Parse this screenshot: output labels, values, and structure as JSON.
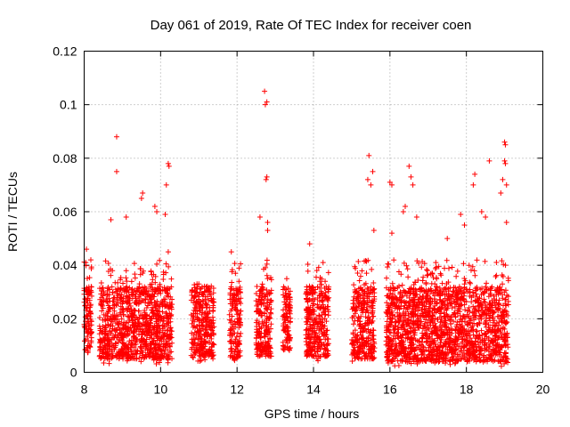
{
  "chart_data": {
    "type": "scatter",
    "title": "Day 061 of 2019, Rate Of TEC Index for receiver coen",
    "xlabel": "GPS time / hours",
    "ylabel": "ROTI / TECUs",
    "xlim": [
      8,
      20
    ],
    "ylim": [
      0,
      0.12
    ],
    "x_ticks": [
      8,
      10,
      12,
      14,
      16,
      18,
      20
    ],
    "x_tick_labels": [
      "8",
      "10",
      "12",
      "14",
      "16",
      "18",
      "20"
    ],
    "y_ticks": [
      0,
      0.02,
      0.04,
      0.06,
      0.08,
      0.1,
      0.12
    ],
    "y_tick_labels": [
      "0",
      "0.02",
      "0.04",
      "0.06",
      "0.08",
      "0.1",
      "0.12"
    ],
    "grid": true,
    "marker": "+",
    "marker_color": "#ff0000",
    "series": [
      {
        "name": "ROTI",
        "cluster_summary": [
          {
            "x_range": [
              8.0,
              8.2
            ],
            "y_range": [
              0.005,
              0.046
            ]
          },
          {
            "x_range": [
              8.4,
              10.3
            ],
            "y_range": [
              0.003,
              0.088
            ]
          },
          {
            "x_range": [
              10.8,
              11.4
            ],
            "y_range": [
              0.004,
              0.033
            ]
          },
          {
            "x_range": [
              11.8,
              12.1
            ],
            "y_range": [
              0.003,
              0.045
            ]
          },
          {
            "x_range": [
              12.5,
              12.9
            ],
            "y_range": [
              0.004,
              0.105
            ]
          },
          {
            "x_range": [
              13.2,
              13.4
            ],
            "y_range": [
              0.006,
              0.035
            ]
          },
          {
            "x_range": [
              13.8,
              14.4
            ],
            "y_range": [
              0.004,
              0.048
            ]
          },
          {
            "x_range": [
              15.0,
              15.6
            ],
            "y_range": [
              0.003,
              0.081
            ]
          },
          {
            "x_range": [
              15.9,
              19.1
            ],
            "y_range": [
              0.002,
              0.086
            ]
          }
        ],
        "points": [
          [
            8.06,
            0.046
          ],
          [
            8.05,
            0.031
          ],
          [
            8.1,
            0.008
          ],
          [
            8.1,
            0.015
          ],
          [
            8.12,
            0.022
          ],
          [
            8.85,
            0.088
          ],
          [
            8.85,
            0.075
          ],
          [
            9.53,
            0.067
          ],
          [
            9.5,
            0.065
          ],
          [
            8.7,
            0.057
          ],
          [
            9.1,
            0.058
          ],
          [
            9.85,
            0.062
          ],
          [
            9.9,
            0.06
          ],
          [
            10.2,
            0.078
          ],
          [
            10.22,
            0.077
          ],
          [
            10.15,
            0.07
          ],
          [
            10.12,
            0.059
          ],
          [
            10.2,
            0.045
          ],
          [
            11.1,
            0.029
          ],
          [
            11.0,
            0.033
          ],
          [
            11.85,
            0.045
          ],
          [
            12.05,
            0.034
          ],
          [
            12.72,
            0.105
          ],
          [
            12.74,
            0.1
          ],
          [
            12.78,
            0.101
          ],
          [
            12.78,
            0.073
          ],
          [
            12.76,
            0.072
          ],
          [
            12.6,
            0.058
          ],
          [
            12.8,
            0.056
          ],
          [
            12.8,
            0.053
          ],
          [
            13.3,
            0.035
          ],
          [
            13.9,
            0.048
          ],
          [
            14.25,
            0.041
          ],
          [
            15.45,
            0.081
          ],
          [
            15.55,
            0.075
          ],
          [
            15.42,
            0.072
          ],
          [
            15.5,
            0.07
          ],
          [
            15.58,
            0.053
          ],
          [
            16.0,
            0.071
          ],
          [
            16.05,
            0.07
          ],
          [
            16.5,
            0.077
          ],
          [
            16.55,
            0.073
          ],
          [
            16.6,
            0.07
          ],
          [
            16.4,
            0.062
          ],
          [
            16.35,
            0.06
          ],
          [
            16.7,
            0.058
          ],
          [
            16.05,
            0.052
          ],
          [
            18.22,
            0.074
          ],
          [
            18.18,
            0.07
          ],
          [
            18.6,
            0.079
          ],
          [
            18.4,
            0.06
          ],
          [
            18.5,
            0.058
          ],
          [
            19.0,
            0.086
          ],
          [
            19.02,
            0.085
          ],
          [
            19.0,
            0.079
          ],
          [
            19.02,
            0.078
          ],
          [
            18.95,
            0.072
          ],
          [
            19.05,
            0.07
          ],
          [
            18.9,
            0.067
          ],
          [
            17.85,
            0.059
          ],
          [
            17.95,
            0.055
          ],
          [
            17.5,
            0.05
          ],
          [
            19.05,
            0.056
          ],
          [
            17.2,
            0.041
          ],
          [
            17.1,
            0.005
          ]
        ]
      }
    ]
  }
}
